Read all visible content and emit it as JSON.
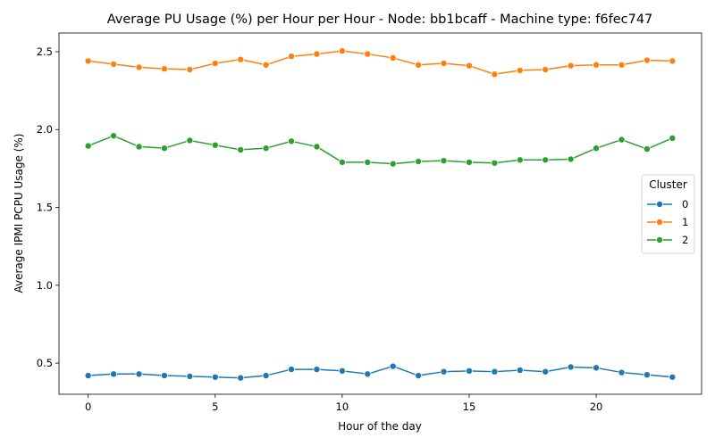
{
  "chart_data": {
    "type": "line",
    "title": "Average PU Usage (%) per Hour per Hour - Node: bb1bcaff - Machine type: f6fec747",
    "xlabel": "Hour of the day",
    "ylabel": "Average IPMI PCPU Usage (%)",
    "xlim": [
      -1.15,
      24.15
    ],
    "ylim": [
      0.3,
      2.62
    ],
    "xticks": [
      0,
      5,
      10,
      15,
      20
    ],
    "yticks": [
      0.5,
      1.0,
      1.5,
      2.0,
      2.5
    ],
    "xtick_labels": [
      "0",
      "5",
      "10",
      "15",
      "20"
    ],
    "ytick_labels": [
      "0.5",
      "1.0",
      "1.5",
      "2.0",
      "2.5"
    ],
    "grid": false,
    "legend": {
      "title": "Cluster",
      "placement": "center-right"
    },
    "x": [
      0,
      1,
      2,
      3,
      4,
      5,
      6,
      7,
      8,
      9,
      10,
      11,
      12,
      13,
      14,
      15,
      16,
      17,
      18,
      19,
      20,
      21,
      22,
      23
    ],
    "series": [
      {
        "name": "0",
        "color": "#1f77b4",
        "values": [
          0.42,
          0.43,
          0.43,
          0.42,
          0.415,
          0.41,
          0.405,
          0.42,
          0.46,
          0.46,
          0.45,
          0.43,
          0.48,
          0.42,
          0.445,
          0.45,
          0.445,
          0.455,
          0.445,
          0.475,
          0.47,
          0.44,
          0.425,
          0.41
        ]
      },
      {
        "name": "1",
        "color": "#ff7f0e",
        "values": [
          2.44,
          2.42,
          2.4,
          2.39,
          2.385,
          2.425,
          2.45,
          2.415,
          2.47,
          2.485,
          2.505,
          2.485,
          2.46,
          2.415,
          2.425,
          2.41,
          2.355,
          2.38,
          2.385,
          2.41,
          2.415,
          2.415,
          2.445,
          2.44
        ]
      },
      {
        "name": "2",
        "color": "#2ca02c",
        "values": [
          1.895,
          1.96,
          1.89,
          1.88,
          1.93,
          1.9,
          1.87,
          1.88,
          1.925,
          1.89,
          1.79,
          1.79,
          1.78,
          1.795,
          1.8,
          1.79,
          1.785,
          1.805,
          1.805,
          1.81,
          1.88,
          1.935,
          1.875,
          1.945
        ]
      }
    ]
  }
}
